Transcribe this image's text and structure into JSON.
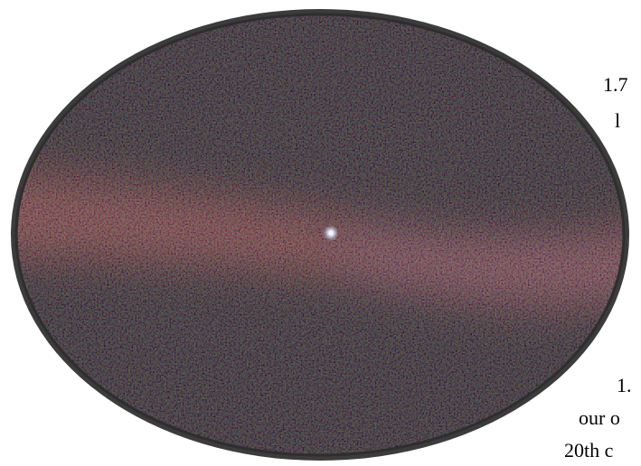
{
  "background_text": {
    "line_1": "1.7",
    "line_2": "l",
    "line_3": "1.",
    "line_4": "our o",
    "line_5": "20th c"
  },
  "photo": {
    "subject": "pale-blue-dot-image",
    "frame_color": "#4a4a4a",
    "dot_color": "#e8f0ff"
  }
}
